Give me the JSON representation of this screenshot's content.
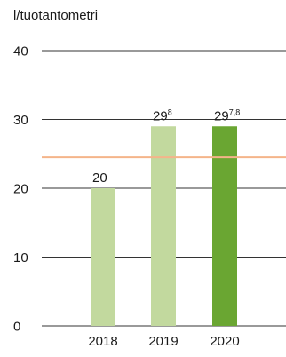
{
  "chart_data": {
    "type": "bar",
    "ylabel": "l/tuotantometri",
    "categories": [
      "2018",
      "2019",
      "2020"
    ],
    "values": [
      20,
      29,
      29
    ],
    "value_labels": [
      "20",
      "29",
      "29"
    ],
    "value_label_superscripts": [
      "",
      "8",
      "7,8"
    ],
    "bar_colors": [
      "#c2d99e",
      "#c2d99e",
      "#6aa632"
    ],
    "ylim": [
      0,
      40
    ],
    "yticks": [
      0,
      10,
      20,
      30,
      40
    ],
    "reference_line": {
      "value": 24.5,
      "color": "#f4b48a"
    },
    "grid": false
  }
}
